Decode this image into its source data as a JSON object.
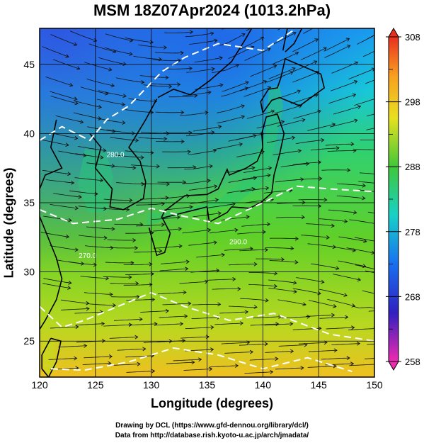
{
  "title": "MSM 18Z07Apr2024 (1013.2hPa)",
  "xlabel": "Longitude (degrees)",
  "ylabel": "Latitude  (degrees)",
  "credits": [
    "Drawing by DCL (https://www.gfd-dennou.org/library/dcl/)",
    "Data from http://database.rish.kyoto-u.ac.jp/arch/jmadata/"
  ],
  "map": {
    "lon_range": [
      120,
      150
    ],
    "lat_range": [
      22.4,
      47.6
    ],
    "lon_ticks": [
      120,
      125,
      130,
      135,
      140,
      145,
      150
    ],
    "lat_ticks": [
      25,
      30,
      35,
      40,
      45
    ],
    "grid": true,
    "field": "temperature (K)",
    "overlay": "streamlines"
  },
  "colorbar": {
    "ticks": [
      "308",
      "298",
      "288",
      "278",
      "268",
      "258"
    ],
    "min": 258,
    "max": 308,
    "colors": [
      "#ff2ab0",
      "#3a1fd0",
      "#1a7af0",
      "#18d0d8",
      "#20c860",
      "#70d020",
      "#d8e020",
      "#f8b020",
      "#f05a18"
    ]
  },
  "contour_labels": [
    "290.0",
    "280.0",
    "270.0"
  ]
}
